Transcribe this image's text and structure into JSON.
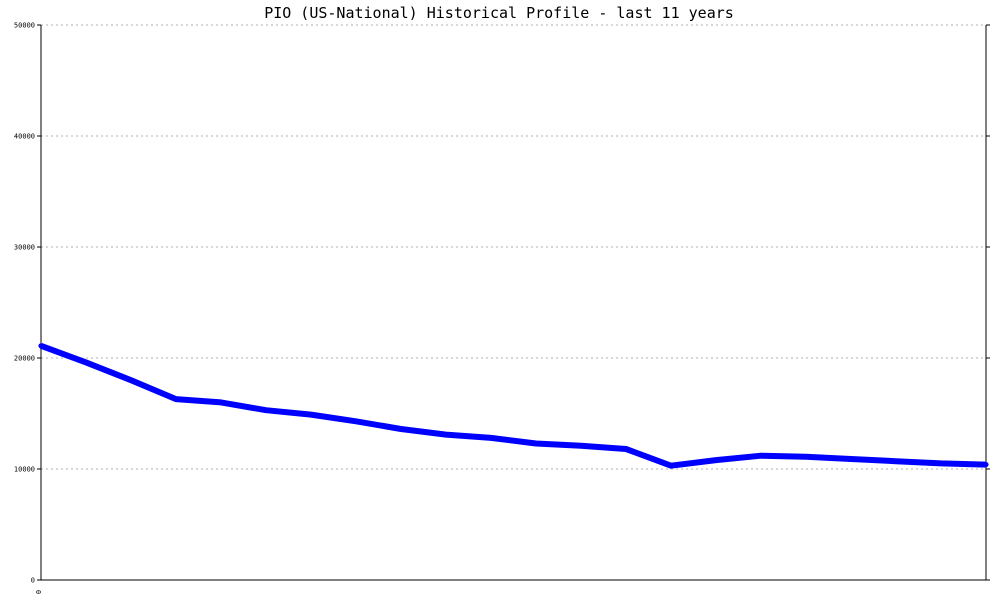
{
  "chart_data": {
    "type": "line",
    "title": "PIO (US-National) Historical Profile - last 11 years",
    "xlabel": "",
    "ylabel": "",
    "x_tick_labels": [
      "0"
    ],
    "y_ticks": [
      0,
      10000,
      20000,
      30000,
      40000,
      50000
    ],
    "ylim": [
      0,
      50000
    ],
    "grid": true,
    "series": [
      {
        "color": "#0000ff",
        "values": [
          21100,
          19600,
          18000,
          16300,
          16000,
          15300,
          14900,
          14300,
          13600,
          13100,
          12800,
          12300,
          12100,
          11800,
          10300,
          10800,
          11200,
          11100,
          10900,
          10700,
          10500,
          10400
        ]
      }
    ]
  }
}
